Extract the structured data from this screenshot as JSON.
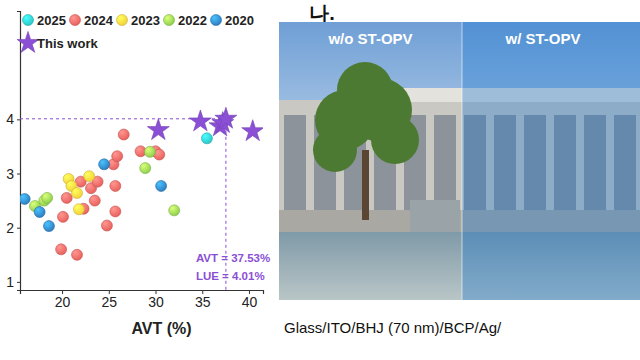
{
  "title": "나.",
  "chart_data": {
    "type": "scatter",
    "x_label": "AVT (%)",
    "xlim": [
      15.5,
      41.5
    ],
    "xticks": [
      20,
      25,
      30,
      35,
      40
    ],
    "ylim": [
      0.85,
      6.0
    ],
    "yticks": [
      1,
      2,
      3,
      4
    ],
    "legend": "upper left",
    "series": [
      {
        "name": "2025",
        "color": "#2ec7c9",
        "marker": "circle",
        "x": [
          35.5
        ],
        "values": [
          3.65
        ]
      },
      {
        "name": "2024",
        "color": "#e9625e",
        "marker": "circle",
        "x": [
          19.9,
          21.6,
          20.1,
          20.5,
          22.0,
          22.3,
          23.1,
          23.5,
          23.8,
          24.8,
          25.7,
          25.7,
          25.5,
          25.9,
          26.6,
          28.4,
          30.0,
          30.4
        ],
        "values": [
          1.6,
          1.5,
          2.2,
          2.55,
          2.85,
          2.35,
          2.73,
          2.5,
          2.85,
          2.04,
          2.3,
          2.77,
          3.17,
          3.32,
          3.72,
          3.41,
          3.41,
          3.35
        ]
      },
      {
        "name": "2023",
        "color": "#f3d23c",
        "marker": "circle",
        "x": [
          20.7,
          21.0,
          21.6,
          21.8,
          22.9
        ],
        "values": [
          2.9,
          2.77,
          2.64,
          2.34,
          2.95
        ]
      },
      {
        "name": "2022",
        "color": "#8fd14f",
        "marker": "circle",
        "x": [
          17.1,
          18.1,
          18.4,
          28.9,
          29.4,
          32.0
        ],
        "values": [
          2.4,
          2.5,
          2.55,
          3.1,
          3.4,
          2.32
        ]
      },
      {
        "name": "2020",
        "color": "#2f7fc1",
        "marker": "circle",
        "x": [
          16.0,
          17.6,
          18.6,
          24.5,
          30.6
        ],
        "values": [
          2.53,
          2.29,
          2.03,
          3.17,
          2.77
        ]
      },
      {
        "name": "This work",
        "color": "#8b4fd6",
        "marker": "star",
        "x": [
          30.3,
          34.8,
          36.9,
          37.2,
          37.53,
          40.4
        ],
        "values": [
          3.8,
          3.96,
          3.87,
          3.93,
          4.01,
          3.78
        ]
      }
    ],
    "guide": {
      "x": 37.53,
      "y": 4.01
    },
    "annotations": [
      "AVT = 37.53%",
      "LUE = 4.01%"
    ]
  },
  "photo": {
    "labels": [
      "w/o ST-OPV",
      "w/ ST-OPV"
    ],
    "caption": "Glass/ITO/BHJ (70 nm)/BCP/Ag/"
  }
}
